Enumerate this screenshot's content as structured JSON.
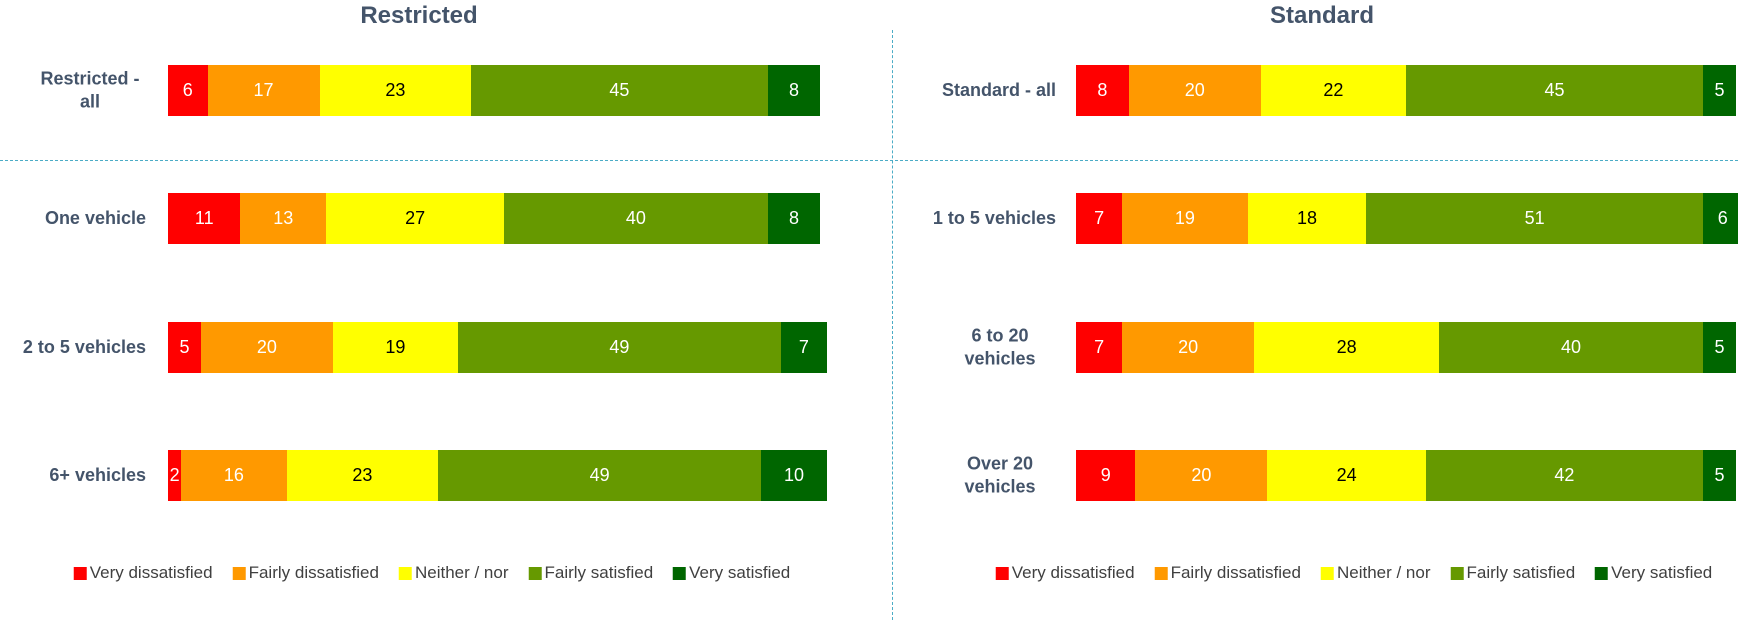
{
  "chart_data": [
    {
      "type": "stacked_barh",
      "title": "Restricted",
      "categories": [
        "Restricted - all",
        "One vehicle",
        "2 to 5 vehicles",
        "6+ vehicles"
      ],
      "xlim": [
        0,
        100
      ],
      "series": [
        {
          "name": "Very dissatisfied",
          "color": "#ff0000",
          "label_color": "#ffffff",
          "values": [
            6,
            11,
            5,
            2
          ]
        },
        {
          "name": "Fairly dissatisfied",
          "color": "#ff9900",
          "label_color": "#ffffff",
          "values": [
            17,
            13,
            20,
            16
          ]
        },
        {
          "name": "Neither / nor",
          "color": "#ffff00",
          "label_color": "#000000",
          "values": [
            23,
            27,
            19,
            23
          ]
        },
        {
          "name": "Fairly satisfied",
          "color": "#669900",
          "label_color": "#ffffff",
          "values": [
            45,
            40,
            49,
            49
          ]
        },
        {
          "name": "Very satisfied",
          "color": "#006600",
          "label_color": "#ffffff",
          "values": [
            8,
            8,
            7,
            10
          ]
        }
      ]
    },
    {
      "type": "stacked_barh",
      "title": "Standard",
      "categories": [
        "Standard - all",
        "1 to 5 vehicles",
        "6 to 20 vehicles",
        "Over 20 vehicles"
      ],
      "xlim": [
        0,
        100
      ],
      "series": [
        {
          "name": "Very dissatisfied",
          "color": "#ff0000",
          "label_color": "#ffffff",
          "values": [
            8,
            7,
            7,
            9
          ]
        },
        {
          "name": "Fairly dissatisfied",
          "color": "#ff9900",
          "label_color": "#ffffff",
          "values": [
            20,
            19,
            20,
            20
          ]
        },
        {
          "name": "Neither / nor",
          "color": "#ffff00",
          "label_color": "#000000",
          "values": [
            22,
            18,
            28,
            24
          ]
        },
        {
          "name": "Fairly satisfied",
          "color": "#669900",
          "label_color": "#ffffff",
          "values": [
            45,
            51,
            40,
            42
          ]
        },
        {
          "name": "Very satisfied",
          "color": "#006600",
          "label_color": "#ffffff",
          "values": [
            5,
            6,
            5,
            5
          ]
        }
      ]
    }
  ]
}
